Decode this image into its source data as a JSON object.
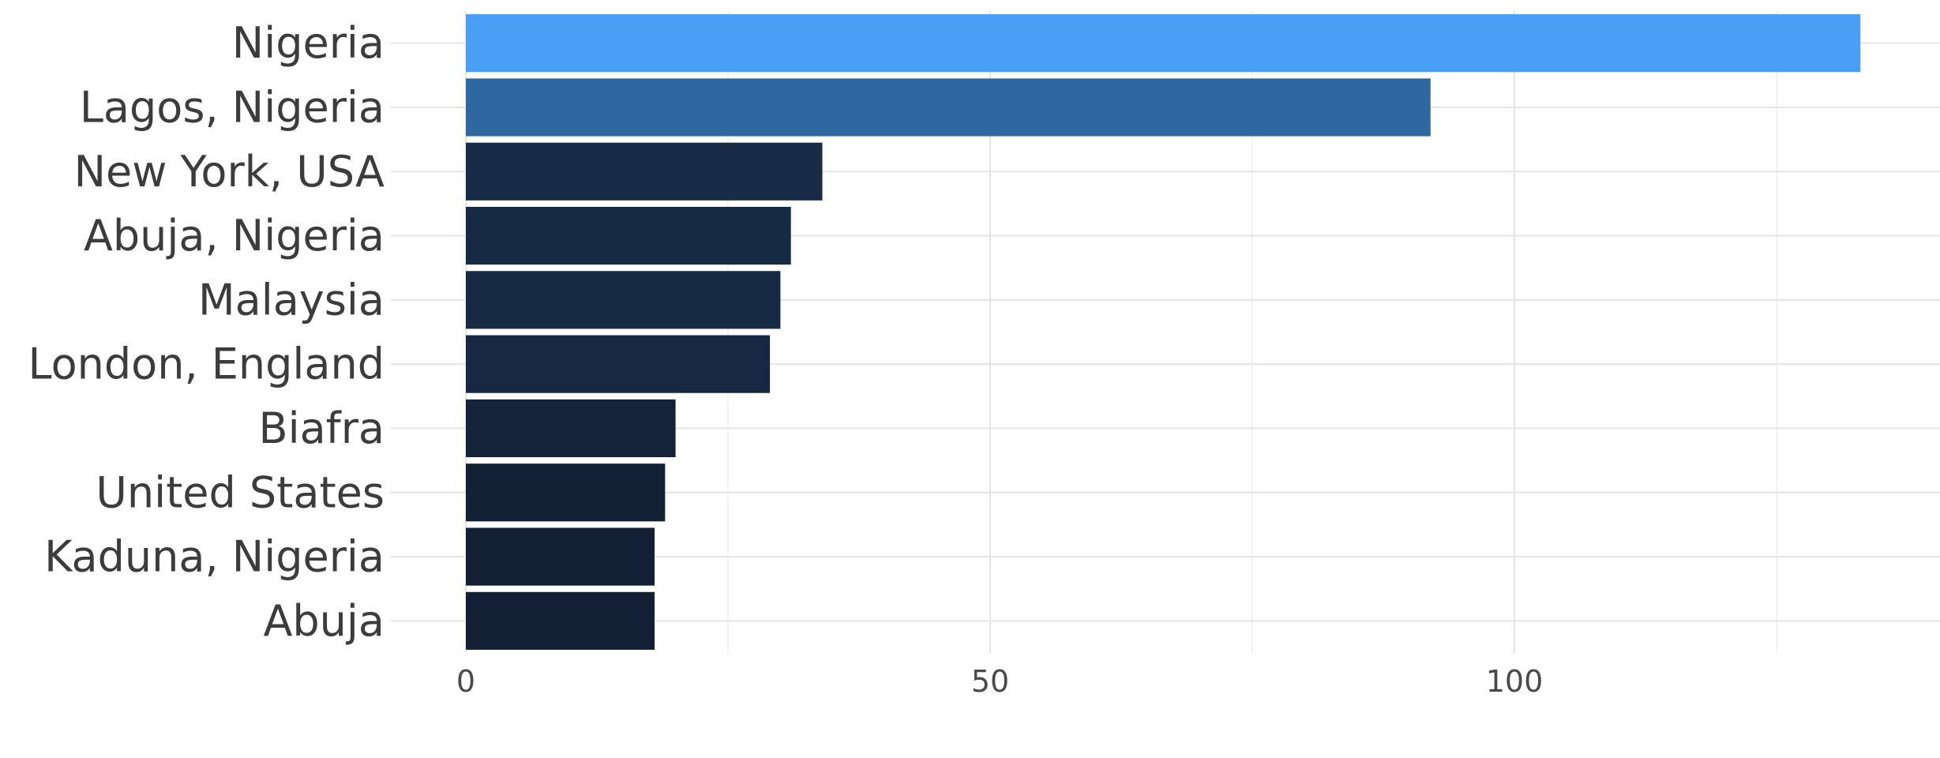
{
  "chart_data": {
    "type": "bar",
    "orientation": "horizontal",
    "title": "",
    "xlabel": "",
    "ylabel": "",
    "categories": [
      "Nigeria",
      "Lagos, Nigeria",
      "New York, USA",
      "Abuja, Nigeria",
      "Malaysia",
      "London, England",
      "Biafra",
      "United States",
      "Kaduna, Nigeria",
      "Abuja"
    ],
    "values": [
      133,
      92,
      34,
      31,
      30,
      29,
      20,
      19,
      18,
      18
    ],
    "colors": [
      "#4a9ff5",
      "#2f68a0",
      "#182c47",
      "#172a44",
      "#172a44",
      "#162842",
      "#14223a",
      "#132137",
      "#121f34",
      "#121f34"
    ],
    "xlim": [
      0,
      140
    ],
    "x_ticks": [
      0,
      50,
      100
    ],
    "x_tick_labels": [
      "0",
      "50",
      "100"
    ],
    "grid": true,
    "legend": "none"
  }
}
